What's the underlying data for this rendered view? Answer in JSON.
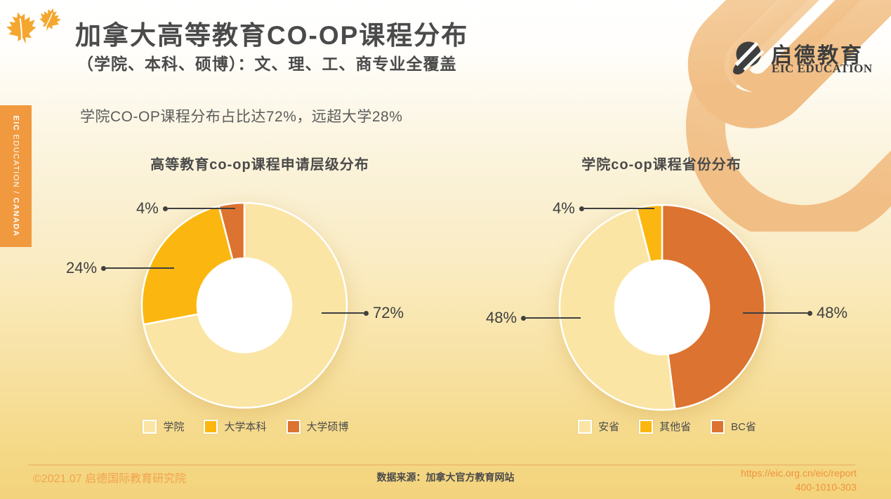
{
  "header": {
    "title": "加拿大高等教育CO-OP课程分布",
    "subtitle": "（学院、本科、硕博）：文、理、工、商专业全覆盖"
  },
  "logo": {
    "name": "启德教育",
    "subtitle": "EIC EDUCATION"
  },
  "sidebar": {
    "brand": "EIC",
    "middle": " EDUCATION / ",
    "region": "CANADA"
  },
  "intro": "学院CO-OP课程分布占比达72%，远超大学28%",
  "chart_data": [
    {
      "type": "pie",
      "donut": true,
      "title": "高等教育co-op课程申请层级分布",
      "start_angle": "top",
      "direction": "clockwise",
      "slices": [
        {
          "label": "学院",
          "value": 72,
          "display": "72%",
          "color": "#FBE5A5"
        },
        {
          "label": "大学本科",
          "value": 24,
          "display": "24%",
          "color": "#FBB70F"
        },
        {
          "label": "大学硕博",
          "value": 4,
          "display": "4%",
          "color": "#DD7330"
        }
      ],
      "legend": [
        {
          "label": "学院",
          "color": "#FBE5A5"
        },
        {
          "label": "大学本科",
          "color": "#FBB70F"
        },
        {
          "label": "大学硕博",
          "color": "#DD7330"
        }
      ]
    },
    {
      "type": "pie",
      "donut": true,
      "title": "学院co-op课程省份分布",
      "start_angle": "top",
      "direction": "clockwise",
      "slices": [
        {
          "label": "BC省",
          "value": 48,
          "display": "48%",
          "color": "#DD7330"
        },
        {
          "label": "安省",
          "value": 48,
          "display": "48%",
          "color": "#FBE5A5"
        },
        {
          "label": "其他省",
          "value": 4,
          "display": "4%",
          "color": "#FBB70F"
        }
      ],
      "legend": [
        {
          "label": "安省",
          "color": "#FBE5A5"
        },
        {
          "label": "其他省",
          "color": "#FBB70F"
        },
        {
          "label": "BC省",
          "color": "#DD7330"
        }
      ]
    }
  ],
  "footer": {
    "copyright": "©2021.07 启德国际教育研究院",
    "source": "数据来源：加拿大官方教育网站",
    "url": "https://eic.org.cn/eic/report",
    "phone": "400-1010-303"
  },
  "colors": {
    "accent_orange": "#F0993F",
    "slice_cream": "#FBE5A5",
    "slice_gold": "#FBB70F",
    "slice_orange": "#DD7330",
    "text_dark": "#4A4A4A"
  }
}
